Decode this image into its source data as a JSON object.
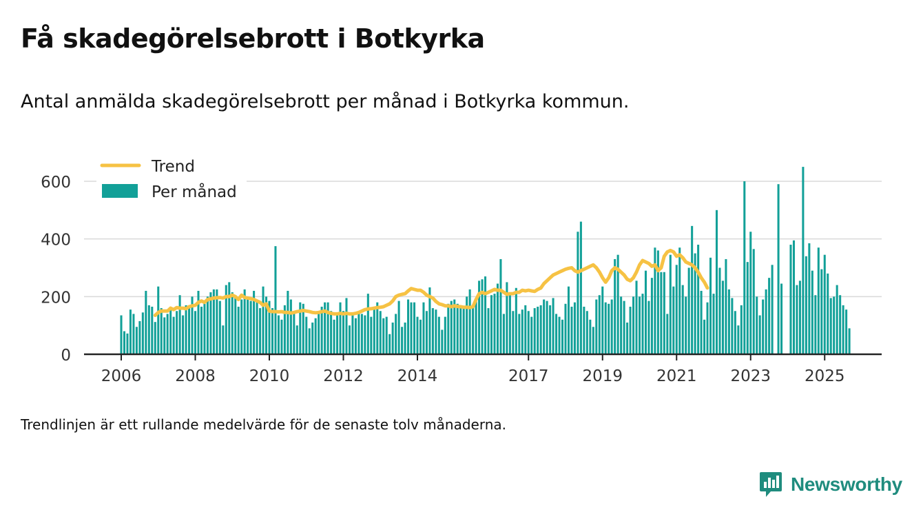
{
  "title": "Få skadegörelsebrott i Botkyrka",
  "subtitle": "Antal anmälda skadegörelsebrott per månad i Botkyrka kommun.",
  "note": "Trendlinjen är ett rullande medelvärde för de senaste tolv månaderna.",
  "brand": {
    "name": "Newsworthy",
    "icon": "newsworthy-logo-icon",
    "color": "#1f8c7e"
  },
  "colors": {
    "bar": "#12a098",
    "trend": "#f6c244",
    "grid": "#d9d9d9",
    "axis": "#222222"
  },
  "chart_data": {
    "type": "bar",
    "ylim": [
      0,
      650
    ],
    "xlim": [
      "2006-01",
      "2025-08"
    ],
    "grid": "horizontal",
    "legend_position": "top-left",
    "legend": {
      "trend": "Trend",
      "monthly": "Per månad"
    },
    "y_ticks": [
      0,
      200,
      400,
      600
    ],
    "x_ticks": [
      {
        "label": "2006",
        "date": "2006-01"
      },
      {
        "label": "2008",
        "date": "2008-01"
      },
      {
        "label": "2010",
        "date": "2010-01"
      },
      {
        "label": "2012",
        "date": "2012-01"
      },
      {
        "label": "2014",
        "date": "2014-01"
      },
      {
        "label": "2017",
        "date": "2017-01"
      },
      {
        "label": "2019",
        "date": "2019-01"
      },
      {
        "label": "2021",
        "date": "2021-01"
      },
      {
        "label": "2023",
        "date": "2023-01"
      },
      {
        "label": "2025",
        "date": "2025-01"
      }
    ],
    "start_month": "2006-01",
    "values_per_month": [
      135,
      80,
      72,
      155,
      140,
      95,
      115,
      145,
      220,
      170,
      165,
      112,
      235,
      160,
      128,
      140,
      162,
      130,
      150,
      205,
      135,
      170,
      160,
      200,
      150,
      220,
      165,
      175,
      200,
      215,
      225,
      225,
      185,
      100,
      240,
      250,
      215,
      205,
      165,
      190,
      225,
      200,
      185,
      220,
      190,
      160,
      235,
      200,
      185,
      160,
      375,
      135,
      120,
      170,
      220,
      190,
      145,
      100,
      180,
      175,
      130,
      90,
      110,
      125,
      145,
      165,
      180,
      180,
      150,
      120,
      145,
      180,
      150,
      195,
      100,
      140,
      125,
      145,
      140,
      135,
      210,
      130,
      165,
      180,
      150,
      125,
      130,
      70,
      110,
      140,
      185,
      95,
      110,
      190,
      180,
      180,
      130,
      120,
      180,
      150,
      232,
      160,
      155,
      130,
      85,
      130,
      175,
      185,
      190,
      175,
      165,
      160,
      200,
      225,
      170,
      190,
      255,
      260,
      270,
      160,
      205,
      210,
      245,
      330,
      140,
      250,
      205,
      150,
      230,
      140,
      155,
      170,
      150,
      130,
      160,
      165,
      170,
      190,
      185,
      170,
      195,
      140,
      130,
      120,
      175,
      235,
      165,
      180,
      425,
      460,
      165,
      150,
      120,
      95,
      190,
      205,
      235,
      180,
      175,
      190,
      330,
      345,
      200,
      185,
      110,
      165,
      200,
      255,
      200,
      210,
      290,
      185,
      265,
      370,
      360,
      285,
      285,
      140,
      345,
      235,
      310,
      370,
      240,
      200,
      300,
      445,
      350,
      380,
      220,
      120,
      180,
      335,
      210,
      500,
      300,
      255,
      330,
      225,
      195,
      150,
      100,
      170,
      600,
      320,
      425,
      365,
      200,
      135,
      190,
      225,
      265,
      310,
      0,
      590,
      245,
      0,
      0,
      380,
      395,
      240,
      255,
      650,
      340,
      385,
      290,
      205,
      370,
      295,
      345,
      280,
      195,
      200,
      240,
      205,
      170,
      155,
      90
    ],
    "trend_start_month": "2006-12",
    "trend_values": [
      135,
      145,
      150,
      150,
      150,
      160,
      155,
      162,
      160,
      160,
      158,
      165,
      168,
      170,
      180,
      185,
      180,
      190,
      192,
      195,
      196,
      197,
      195,
      200,
      200,
      205,
      200,
      190,
      205,
      197,
      195,
      193,
      190,
      185,
      180,
      170,
      175,
      150,
      148,
      148,
      147,
      148,
      145,
      145,
      143,
      145,
      148,
      150,
      152,
      150,
      148,
      145,
      144,
      145,
      148,
      150,
      145,
      142,
      140,
      140,
      142,
      140,
      142,
      140,
      140,
      142,
      145,
      150,
      155,
      157,
      158,
      160,
      162,
      163,
      165,
      170,
      175,
      185,
      200,
      205,
      208,
      210,
      220,
      228,
      225,
      222,
      222,
      215,
      205,
      200,
      195,
      183,
      175,
      172,
      168,
      168,
      165,
      168,
      166,
      165,
      163,
      163,
      162,
      165,
      190,
      210,
      215,
      210,
      215,
      220,
      225,
      222,
      222,
      215,
      208,
      210,
      210,
      215,
      215,
      222,
      220,
      222,
      220,
      218,
      225,
      230,
      245,
      255,
      265,
      275,
      280,
      285,
      290,
      295,
      298,
      300,
      290,
      285,
      290,
      295,
      300,
      305,
      310,
      300,
      285,
      265,
      250,
      265,
      290,
      300,
      295,
      285,
      275,
      260,
      255,
      265,
      285,
      310,
      325,
      320,
      315,
      305,
      310,
      290,
      300,
      340,
      355,
      360,
      355,
      340,
      345,
      335,
      320,
      315,
      310,
      300,
      285,
      265,
      250,
      230
    ]
  }
}
